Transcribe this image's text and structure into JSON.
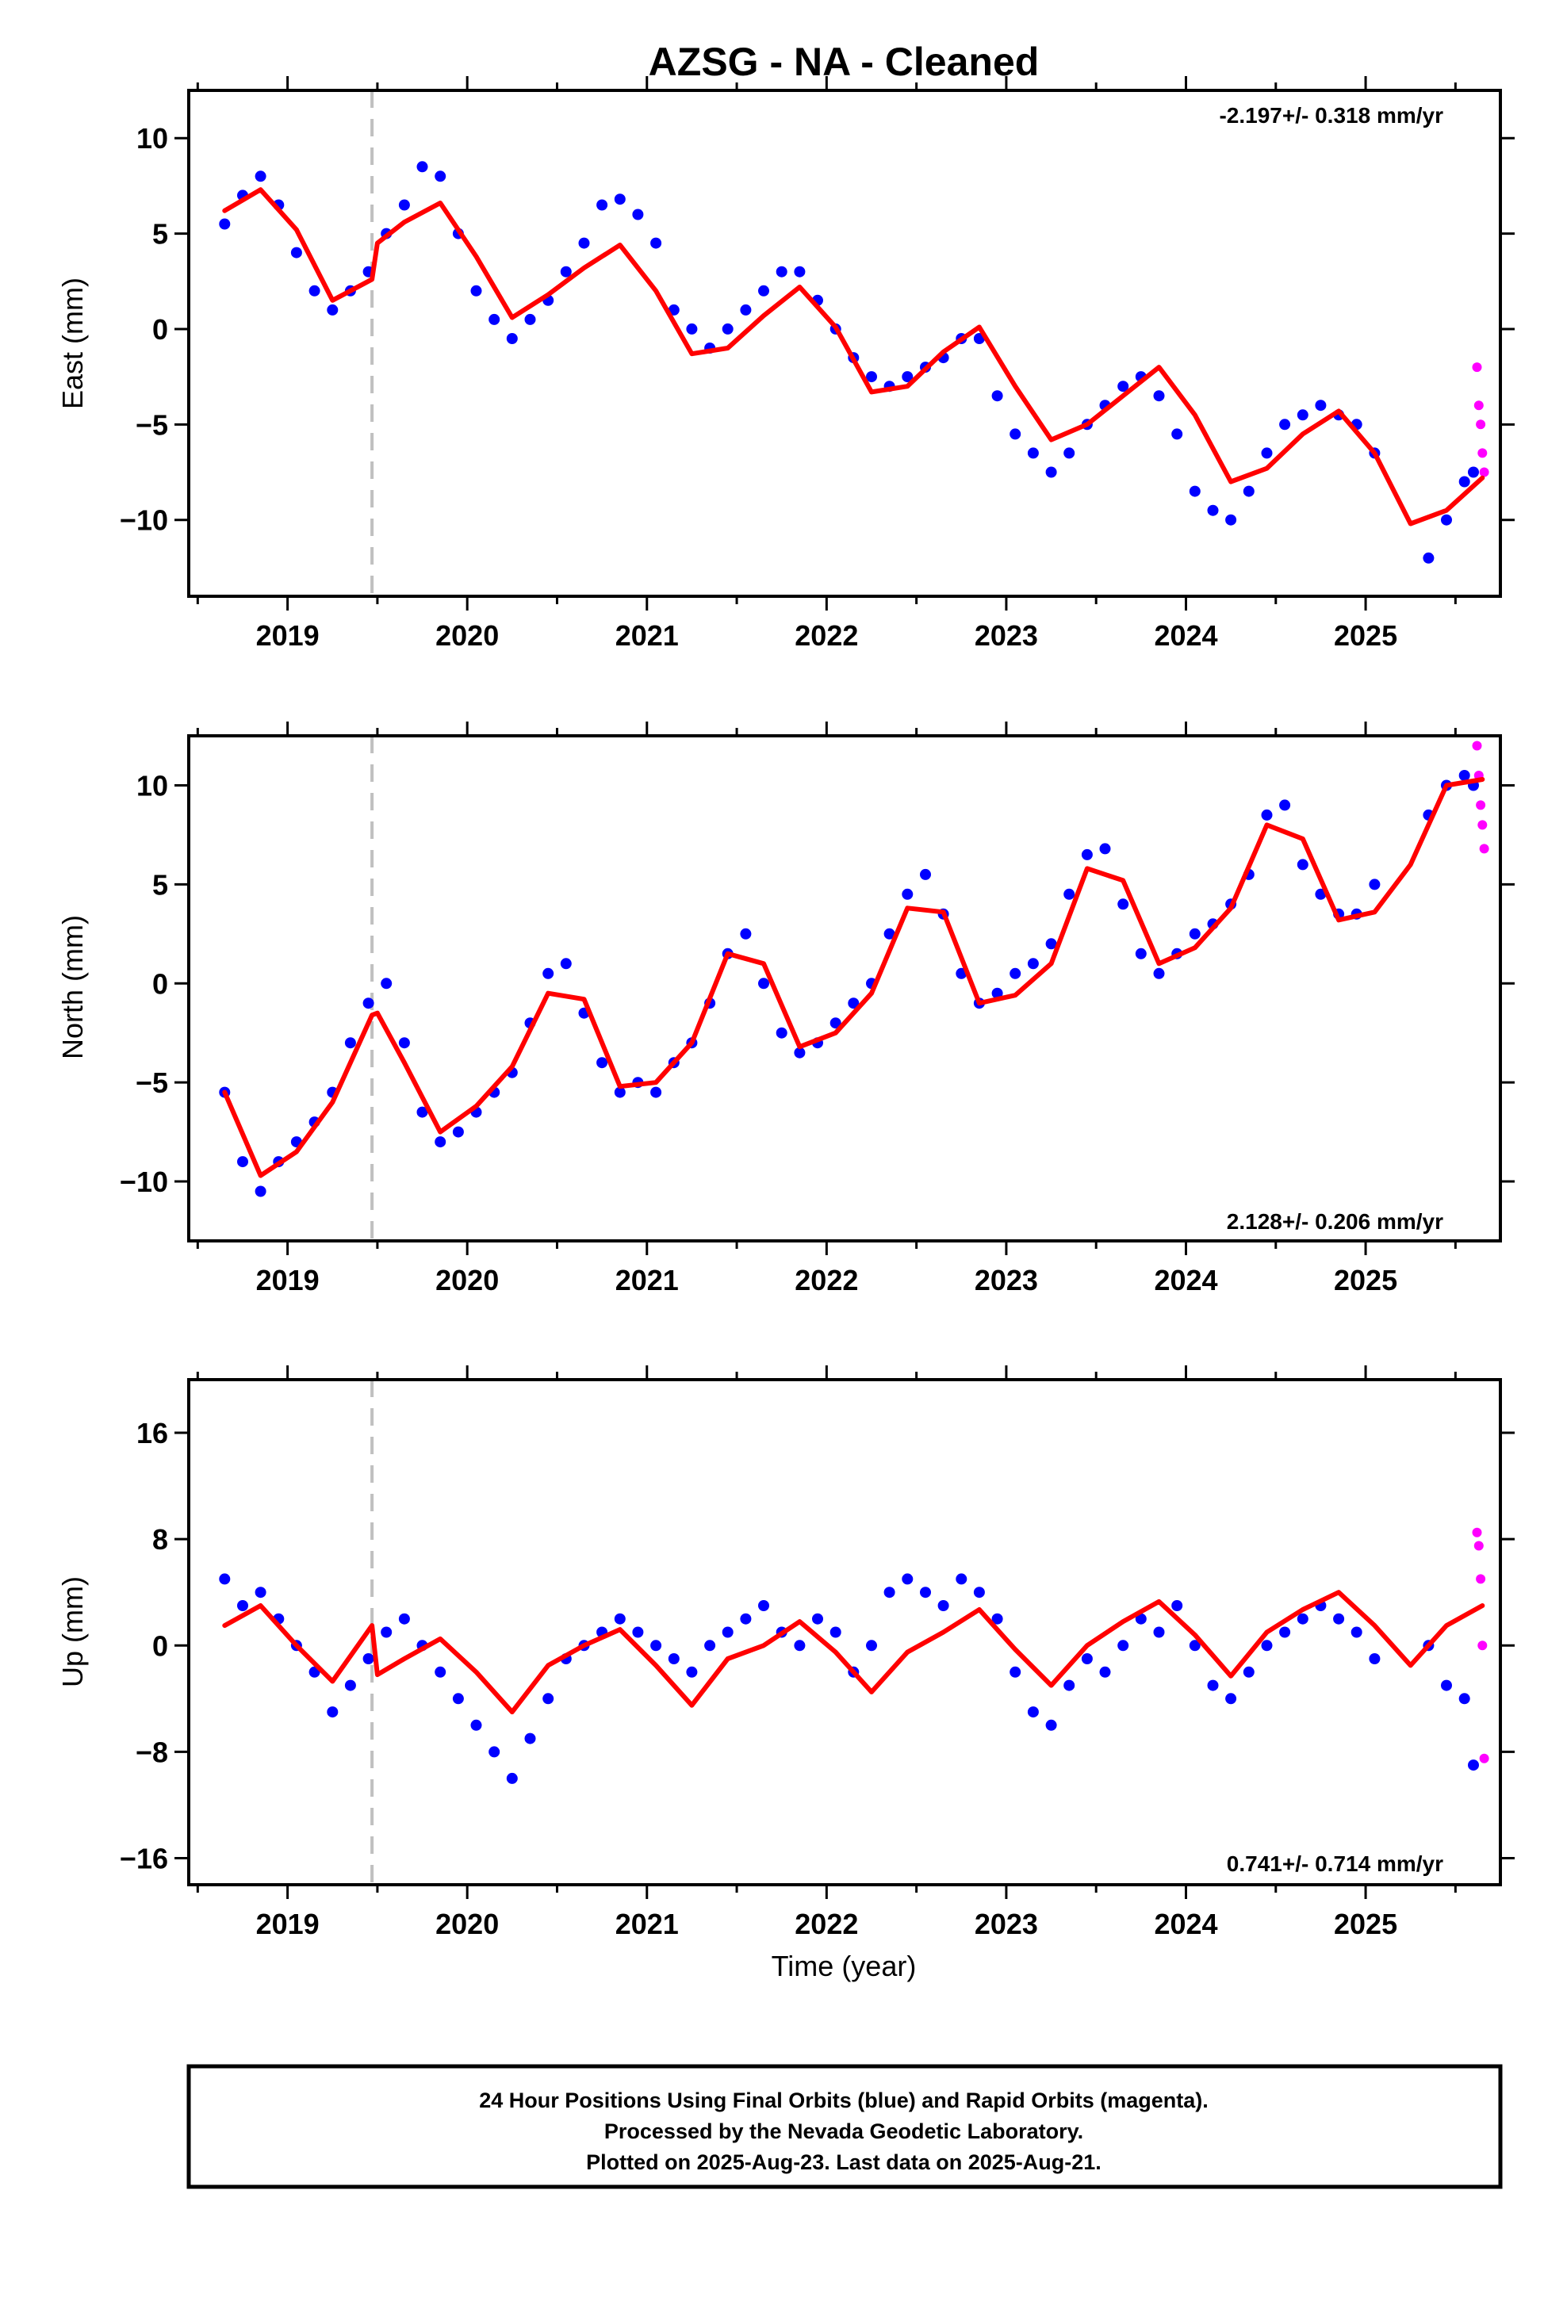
{
  "title": "AZSG  - NA - Cleaned",
  "xlabel": "Time (year)",
  "footer": {
    "line1": "24 Hour Positions Using Final Orbits (blue) and Rapid Orbits (magenta).",
    "line2": "Processed by the Nevada Geodetic Laboratory.",
    "line3": "Plotted on 2025-Aug-23. Last data on 2025-Aug-21."
  },
  "colors": {
    "final_orbits": "#0000ff",
    "rapid_orbits": "#ff00ff",
    "model": "#ff0000",
    "event_line": "#c0c0c0"
  },
  "chart_data": [
    {
      "type": "scatter",
      "ylabel": "East (mm)",
      "rate_label": "-2.197+/- 0.318 mm/yr",
      "xlim": [
        2018.45,
        2025.75
      ],
      "ylim": [
        -14,
        12.5
      ],
      "xticks": [
        2019,
        2020,
        2021,
        2022,
        2023,
        2024,
        2025
      ],
      "yticks": [
        10,
        5,
        0,
        -5,
        -10
      ],
      "ytick_labels": [
        "10",
        "5",
        "0",
        "−5",
        "−10"
      ],
      "vline": 2019.47,
      "series": [
        {
          "role": "final_orbits",
          "x": [
            2018.65,
            2018.75,
            2018.85,
            2018.95,
            2019.05,
            2019.15,
            2019.25,
            2019.35,
            2019.45,
            2019.55,
            2019.65,
            2019.75,
            2019.85,
            2019.95,
            2020.05,
            2020.15,
            2020.25,
            2020.35,
            2020.45,
            2020.55,
            2020.65,
            2020.75,
            2020.85,
            2020.95,
            2021.05,
            2021.15,
            2021.25,
            2021.35,
            2021.45,
            2021.55,
            2021.65,
            2021.75,
            2021.85,
            2021.95,
            2022.05,
            2022.15,
            2022.25,
            2022.35,
            2022.45,
            2022.55,
            2022.65,
            2022.75,
            2022.85,
            2022.95,
            2023.05,
            2023.15,
            2023.25,
            2023.35,
            2023.45,
            2023.55,
            2023.65,
            2023.75,
            2023.85,
            2023.95,
            2024.05,
            2024.15,
            2024.25,
            2024.35,
            2024.45,
            2024.55,
            2024.65,
            2024.75,
            2024.85,
            2024.95,
            2025.05,
            2025.35,
            2025.45,
            2025.55,
            2025.6
          ],
          "y": [
            5.5,
            7.0,
            8.0,
            6.5,
            4.0,
            2.0,
            1.0,
            2.0,
            3.0,
            5.0,
            6.5,
            8.5,
            8.0,
            5.0,
            2.0,
            0.5,
            -0.5,
            0.5,
            1.5,
            3.0,
            4.5,
            6.5,
            6.8,
            6.0,
            4.5,
            1.0,
            0.0,
            -1.0,
            0.0,
            1.0,
            2.0,
            3.0,
            3.0,
            1.5,
            0.0,
            -1.5,
            -2.5,
            -3.0,
            -2.5,
            -2.0,
            -1.5,
            -0.5,
            -0.5,
            -3.5,
            -5.5,
            -6.5,
            -7.5,
            -6.5,
            -5.0,
            -4.0,
            -3.0,
            -2.5,
            -3.5,
            -5.5,
            -8.5,
            -9.5,
            -10.0,
            -8.5,
            -6.5,
            -5.0,
            -4.5,
            -4.0,
            -4.5,
            -5.0,
            -6.5,
            -12.0,
            -10.0,
            -8.0,
            -7.5
          ]
        },
        {
          "role": "rapid_orbits",
          "x": [
            2025.62,
            2025.63,
            2025.64,
            2025.65,
            2025.66
          ],
          "y": [
            -2.0,
            -4.0,
            -5.0,
            -6.5,
            -7.5
          ]
        },
        {
          "role": "model",
          "x": [
            2018.65,
            2018.85,
            2019.05,
            2019.25,
            2019.47,
            2019.5,
            2019.65,
            2019.85,
            2020.05,
            2020.25,
            2020.45,
            2020.65,
            2020.85,
            2021.05,
            2021.25,
            2021.45,
            2021.65,
            2021.85,
            2022.05,
            2022.25,
            2022.45,
            2022.65,
            2022.85,
            2023.05,
            2023.25,
            2023.45,
            2023.65,
            2023.85,
            2024.05,
            2024.25,
            2024.45,
            2024.65,
            2024.85,
            2025.05,
            2025.25,
            2025.45,
            2025.65
          ],
          "y": [
            6.2,
            7.3,
            5.2,
            1.5,
            2.6,
            4.5,
            5.6,
            6.6,
            3.8,
            0.6,
            1.8,
            3.2,
            4.4,
            2.0,
            -1.3,
            -1.0,
            0.7,
            2.2,
            0.1,
            -3.3,
            -3.0,
            -1.2,
            0.1,
            -3.0,
            -5.8,
            -5.0,
            -3.5,
            -2.0,
            -4.5,
            -8.0,
            -7.3,
            -5.5,
            -4.3,
            -6.5,
            -10.2,
            -9.5,
            -7.8
          ]
        }
      ]
    },
    {
      "type": "scatter",
      "ylabel": "North (mm)",
      "rate_label": "2.128+/- 0.206 mm/yr",
      "xlim": [
        2018.45,
        2025.75
      ],
      "ylim": [
        -13,
        12.5
      ],
      "xticks": [
        2019,
        2020,
        2021,
        2022,
        2023,
        2024,
        2025
      ],
      "yticks": [
        10,
        5,
        0,
        -5,
        -10
      ],
      "ytick_labels": [
        "10",
        "5",
        "0",
        "−5",
        "−10"
      ],
      "vline": 2019.47,
      "series": [
        {
          "role": "final_orbits",
          "x": [
            2018.65,
            2018.75,
            2018.85,
            2018.95,
            2019.05,
            2019.15,
            2019.25,
            2019.35,
            2019.45,
            2019.55,
            2019.65,
            2019.75,
            2019.85,
            2019.95,
            2020.05,
            2020.15,
            2020.25,
            2020.35,
            2020.45,
            2020.55,
            2020.65,
            2020.75,
            2020.85,
            2020.95,
            2021.05,
            2021.15,
            2021.25,
            2021.35,
            2021.45,
            2021.55,
            2021.65,
            2021.75,
            2021.85,
            2021.95,
            2022.05,
            2022.15,
            2022.25,
            2022.35,
            2022.45,
            2022.55,
            2022.65,
            2022.75,
            2022.85,
            2022.95,
            2023.05,
            2023.15,
            2023.25,
            2023.35,
            2023.45,
            2023.55,
            2023.65,
            2023.75,
            2023.85,
            2023.95,
            2024.05,
            2024.15,
            2024.25,
            2024.35,
            2024.45,
            2024.55,
            2024.65,
            2024.75,
            2024.85,
            2024.95,
            2025.05,
            2025.35,
            2025.45,
            2025.55,
            2025.6
          ],
          "y": [
            -5.5,
            -9.0,
            -10.5,
            -9.0,
            -8.0,
            -7.0,
            -5.5,
            -3.0,
            -1.0,
            0.0,
            -3.0,
            -6.5,
            -8.0,
            -7.5,
            -6.5,
            -5.5,
            -4.5,
            -2.0,
            0.5,
            1.0,
            -1.5,
            -4.0,
            -5.5,
            -5.0,
            -5.5,
            -4.0,
            -3.0,
            -1.0,
            1.5,
            2.5,
            0.0,
            -2.5,
            -3.5,
            -3.0,
            -2.0,
            -1.0,
            0.0,
            2.5,
            4.5,
            5.5,
            3.5,
            0.5,
            -1.0,
            -0.5,
            0.5,
            1.0,
            2.0,
            4.5,
            6.5,
            6.8,
            4.0,
            1.5,
            0.5,
            1.5,
            2.5,
            3.0,
            4.0,
            5.5,
            8.5,
            9.0,
            6.0,
            4.5,
            3.5,
            3.5,
            5.0,
            8.5,
            10.0,
            10.5,
            10.0
          ]
        },
        {
          "role": "rapid_orbits",
          "x": [
            2025.62,
            2025.63,
            2025.64,
            2025.65,
            2025.66
          ],
          "y": [
            12.0,
            10.5,
            9.0,
            8.0,
            6.8
          ]
        },
        {
          "role": "model",
          "x": [
            2018.65,
            2018.85,
            2019.05,
            2019.25,
            2019.47,
            2019.5,
            2019.65,
            2019.85,
            2020.05,
            2020.25,
            2020.45,
            2020.65,
            2020.85,
            2021.05,
            2021.25,
            2021.45,
            2021.65,
            2021.85,
            2022.05,
            2022.25,
            2022.45,
            2022.65,
            2022.85,
            2023.05,
            2023.25,
            2023.45,
            2023.65,
            2023.85,
            2024.05,
            2024.25,
            2024.45,
            2024.65,
            2024.85,
            2025.05,
            2025.25,
            2025.45,
            2025.65
          ],
          "y": [
            -5.5,
            -9.7,
            -8.5,
            -6.0,
            -1.6,
            -1.5,
            -4.0,
            -7.5,
            -6.2,
            -4.2,
            -0.5,
            -0.8,
            -5.2,
            -5.0,
            -3.0,
            1.5,
            1.0,
            -3.2,
            -2.5,
            -0.5,
            3.8,
            3.6,
            -1.0,
            -0.6,
            1.0,
            5.8,
            5.2,
            1.0,
            1.8,
            3.8,
            8.0,
            7.3,
            3.2,
            3.6,
            6.0,
            10.0,
            10.3
          ]
        }
      ]
    },
    {
      "type": "scatter",
      "ylabel": "Up (mm)",
      "rate_label": "0.741+/- 0.714 mm/yr",
      "xlim": [
        2018.45,
        2025.75
      ],
      "ylim": [
        -18,
        20
      ],
      "xticks": [
        2019,
        2020,
        2021,
        2022,
        2023,
        2024,
        2025
      ],
      "yticks": [
        16,
        8,
        0,
        -8,
        -16
      ],
      "ytick_labels": [
        "16",
        "8",
        "0",
        "−8",
        "−16"
      ],
      "vline": 2019.47,
      "series": [
        {
          "role": "final_orbits",
          "x": [
            2018.65,
            2018.75,
            2018.85,
            2018.95,
            2019.05,
            2019.15,
            2019.25,
            2019.35,
            2019.45,
            2019.55,
            2019.65,
            2019.75,
            2019.85,
            2019.95,
            2020.05,
            2020.15,
            2020.25,
            2020.35,
            2020.45,
            2020.55,
            2020.65,
            2020.75,
            2020.85,
            2020.95,
            2021.05,
            2021.15,
            2021.25,
            2021.35,
            2021.45,
            2021.55,
            2021.65,
            2021.75,
            2021.85,
            2021.95,
            2022.05,
            2022.15,
            2022.25,
            2022.35,
            2022.45,
            2022.55,
            2022.65,
            2022.75,
            2022.85,
            2022.95,
            2023.05,
            2023.15,
            2023.25,
            2023.35,
            2023.45,
            2023.55,
            2023.65,
            2023.75,
            2023.85,
            2023.95,
            2024.05,
            2024.15,
            2024.25,
            2024.35,
            2024.45,
            2024.55,
            2024.65,
            2024.75,
            2024.85,
            2024.95,
            2025.05,
            2025.35,
            2025.45,
            2025.55,
            2025.6
          ],
          "y": [
            5.0,
            3.0,
            4.0,
            2.0,
            0.0,
            -2.0,
            -5.0,
            -3.0,
            -1.0,
            1.0,
            2.0,
            0.0,
            -2.0,
            -4.0,
            -6.0,
            -8.0,
            -10.0,
            -7.0,
            -4.0,
            -1.0,
            0.0,
            1.0,
            2.0,
            1.0,
            0.0,
            -1.0,
            -2.0,
            0.0,
            1.0,
            2.0,
            3.0,
            1.0,
            0.0,
            2.0,
            1.0,
            -2.0,
            0.0,
            4.0,
            5.0,
            4.0,
            3.0,
            5.0,
            4.0,
            2.0,
            -2.0,
            -5.0,
            -6.0,
            -3.0,
            -1.0,
            -2.0,
            0.0,
            2.0,
            1.0,
            3.0,
            0.0,
            -3.0,
            -4.0,
            -2.0,
            0.0,
            1.0,
            2.0,
            3.0,
            2.0,
            1.0,
            -1.0,
            0.0,
            -3.0,
            -4.0,
            -9.0
          ]
        },
        {
          "role": "rapid_orbits",
          "x": [
            2025.62,
            2025.63,
            2025.64,
            2025.65,
            2025.66
          ],
          "y": [
            8.5,
            7.5,
            5.0,
            0.0,
            -8.5
          ]
        },
        {
          "role": "model",
          "x": [
            2018.65,
            2018.85,
            2019.05,
            2019.25,
            2019.47,
            2019.5,
            2019.65,
            2019.85,
            2020.05,
            2020.25,
            2020.45,
            2020.65,
            2020.85,
            2021.05,
            2021.25,
            2021.45,
            2021.65,
            2021.85,
            2022.05,
            2022.25,
            2022.45,
            2022.65,
            2022.85,
            2023.05,
            2023.25,
            2023.45,
            2023.65,
            2023.85,
            2024.05,
            2024.25,
            2024.45,
            2024.65,
            2024.85,
            2025.05,
            2025.25,
            2025.45,
            2025.65
          ],
          "y": [
            1.5,
            3.0,
            0.0,
            -2.7,
            1.5,
            -2.2,
            -1.0,
            0.5,
            -2.0,
            -5.0,
            -1.5,
            0.0,
            1.2,
            -1.5,
            -4.5,
            -1.0,
            0.0,
            1.8,
            -0.5,
            -3.5,
            -0.5,
            1.0,
            2.7,
            -0.3,
            -3.0,
            0.0,
            1.8,
            3.3,
            0.8,
            -2.3,
            1.0,
            2.7,
            4.0,
            1.5,
            -1.5,
            1.5,
            3.0
          ]
        }
      ]
    }
  ]
}
